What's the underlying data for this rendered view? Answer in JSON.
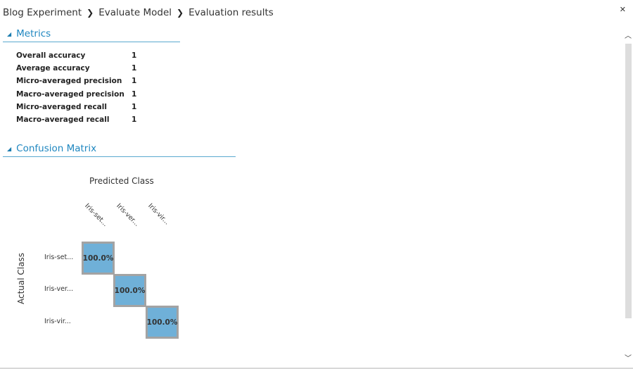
{
  "breadcrumb": {
    "items": [
      "Blog Experiment",
      "Evaluate Model",
      "Evaluation results"
    ],
    "separator": "❯"
  },
  "close_icon": "✕",
  "metrics": {
    "title": "Metrics",
    "rows": [
      {
        "label": "Overall accuracy",
        "value": "1"
      },
      {
        "label": "Average accuracy",
        "value": "1"
      },
      {
        "label": "Micro-averaged precision",
        "value": "1"
      },
      {
        "label": "Macro-averaged precision",
        "value": "1"
      },
      {
        "label": "Micro-averaged recall",
        "value": "1"
      },
      {
        "label": "Macro-averaged recall",
        "value": "1"
      }
    ]
  },
  "confusion_matrix": {
    "title": "Confusion Matrix",
    "predicted_label": "Predicted Class",
    "actual_label": "Actual Class",
    "columns": [
      "Iris-set...",
      "Iris-ver...",
      "Iris-vir..."
    ],
    "rows": [
      "Iris-set...",
      "Iris-ver...",
      "Iris-vir..."
    ],
    "cells": [
      "100.0%",
      "100.0%",
      "100.0%"
    ],
    "cell_color": "#6fb0d8"
  },
  "accent_color": "#1f87c0",
  "collapse_icon": "◢"
}
